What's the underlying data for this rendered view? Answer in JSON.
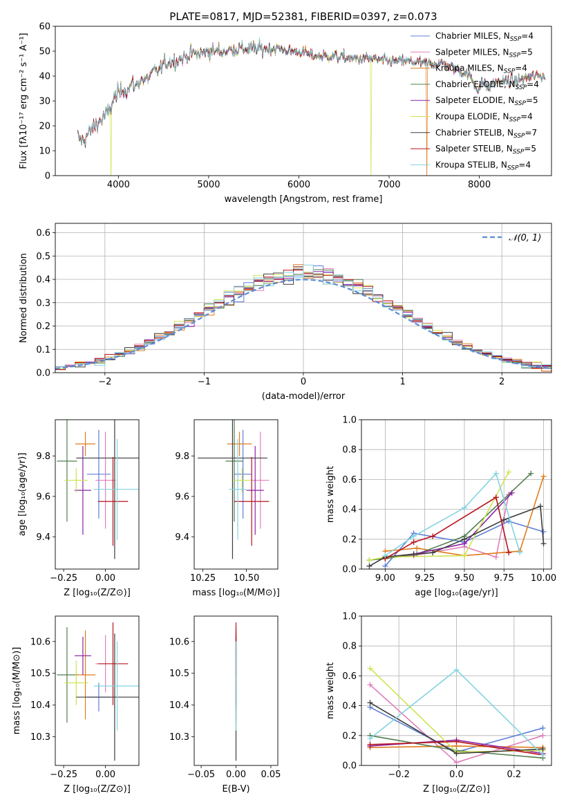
{
  "title": "PLATE=0817, MJD=52381, FIBERID=0397, z=0.073",
  "colors": {
    "Chabrier MILES": "#5b7fd6",
    "Salpeter MILES": "#e07fb8",
    "Kroupa MILES": "#e07b1c",
    "Chabrier ELODIE": "#4f7d4f",
    "Salpeter ELODIE": "#8a22a6",
    "Kroupa ELODIE": "#cfe34f",
    "Chabrier STELIB": "#3c3c3c",
    "Salpeter STELIB": "#b8121a",
    "Kroupa STELIB": "#82d3e0"
  },
  "chart_data": [
    {
      "id": "spectrum",
      "type": "line",
      "xlabel": "wavelength [Angstrom, rest frame]",
      "ylabel": "Flux [fλ10⁻¹⁷ erg cm⁻² s⁻¹ A⁻¹]",
      "xlim": [
        3300,
        8800
      ],
      "ylim": [
        0,
        60
      ],
      "xticks": [
        4000,
        5000,
        6000,
        7000,
        8000
      ],
      "yticks": [
        0,
        10,
        20,
        30,
        40,
        50,
        60
      ],
      "legend_position": "top-right",
      "legend": [
        {
          "text": "Chabrier MILES, N",
          "sub": "SSP",
          "tail": "=4",
          "model": "Chabrier MILES"
        },
        {
          "text": "Salpeter MILES, N",
          "sub": "SSP",
          "tail": "=5",
          "model": "Salpeter MILES"
        },
        {
          "text": "Kroupa MILES, N",
          "sub": "SSP",
          "tail": "=4",
          "model": "Kroupa MILES"
        },
        {
          "text": "Chabrier ELODIE, N",
          "sub": "SSP",
          "tail": "=4",
          "model": "Chabrier ELODIE"
        },
        {
          "text": "Salpeter ELODIE, N",
          "sub": "SSP",
          "tail": "=5",
          "model": "Salpeter ELODIE"
        },
        {
          "text": "Kroupa ELODIE, N",
          "sub": "SSP",
          "tail": "=4",
          "model": "Kroupa ELODIE"
        },
        {
          "text": "Chabrier STELIB, N",
          "sub": "SSP",
          "tail": "=7",
          "model": "Chabrier STELIB"
        },
        {
          "text": "Salpeter STELIB, N",
          "sub": "SSP",
          "tail": "=5",
          "model": "Salpeter STELIB"
        },
        {
          "text": "Kroupa STELIB, N",
          "sub": "SSP",
          "tail": "=4",
          "model": "Kroupa STELIB"
        }
      ],
      "continuum_points": [
        [
          3550,
          15
        ],
        [
          3600,
          14
        ],
        [
          3650,
          16
        ],
        [
          3700,
          18
        ],
        [
          3750,
          21
        ],
        [
          3800,
          22
        ],
        [
          3850,
          24
        ],
        [
          3900,
          26
        ],
        [
          3950,
          31
        ],
        [
          4000,
          33
        ],
        [
          4050,
          35
        ],
        [
          4100,
          34
        ],
        [
          4150,
          37
        ],
        [
          4200,
          36
        ],
        [
          4250,
          39
        ],
        [
          4300,
          38
        ],
        [
          4350,
          40
        ],
        [
          4400,
          42
        ],
        [
          4450,
          42
        ],
        [
          4500,
          45
        ],
        [
          4600,
          46
        ],
        [
          4700,
          47
        ],
        [
          4800,
          49
        ],
        [
          4900,
          49
        ],
        [
          5000,
          50
        ],
        [
          5100,
          50
        ],
        [
          5200,
          50
        ],
        [
          5300,
          51
        ],
        [
          5400,
          51
        ],
        [
          5500,
          51
        ],
        [
          5600,
          51
        ],
        [
          5700,
          51
        ],
        [
          5800,
          51
        ],
        [
          5900,
          50
        ],
        [
          6000,
          50
        ],
        [
          6200,
          48
        ],
        [
          6400,
          48
        ],
        [
          6600,
          47
        ],
        [
          6800,
          47
        ],
        [
          7000,
          46
        ],
        [
          7200,
          46
        ],
        [
          7400,
          45
        ],
        [
          7600,
          45
        ],
        [
          7800,
          42
        ],
        [
          7900,
          40
        ],
        [
          7950,
          36
        ],
        [
          8000,
          35
        ],
        [
          8050,
          38
        ],
        [
          8100,
          35
        ],
        [
          8150,
          37
        ],
        [
          8200,
          38
        ],
        [
          8300,
          38
        ],
        [
          8400,
          38
        ],
        [
          8500,
          39
        ],
        [
          8600,
          40
        ],
        [
          8700,
          40
        ]
      ],
      "drops": [
        {
          "model": "Kroupa ELODIE",
          "x": 3920
        },
        {
          "model": "Kroupa ELODIE",
          "x": 6800
        },
        {
          "model": "Kroupa MILES",
          "x": 7420
        }
      ]
    },
    {
      "id": "residuals",
      "type": "histogram",
      "xlabel": "(data-model)/error",
      "ylabel": "Normed distribution",
      "xlim": [
        -2.5,
        2.5
      ],
      "ylim": [
        0,
        0.64
      ],
      "xticks": [
        -2,
        -1,
        0,
        1,
        2
      ],
      "xticklabels": [
        "−2",
        "−1",
        "0",
        "1",
        "2"
      ],
      "yticks": [
        0,
        0.1,
        0.2,
        0.3,
        0.4,
        0.5,
        0.6
      ],
      "yticklabels": [
        "0.0",
        "0.1",
        "0.2",
        "0.3",
        "0.4",
        "0.5",
        "0.6"
      ],
      "grid": true,
      "bin_width": 0.1,
      "reference": {
        "name": "𝒩(0, 1)",
        "style": "dashed",
        "color": "#5b8ad6"
      },
      "legend_position": "top-right"
    },
    {
      "id": "z-age",
      "type": "errorbar",
      "xlabel": "Z [log₁₀(Z/Z⊙)]",
      "ylabel": "age  [log₁₀(age/yr)]",
      "xlim": [
        -0.3,
        0.2
      ],
      "ylim": [
        9.24,
        9.98
      ],
      "xticks": [
        -0.25,
        0.0
      ],
      "xticklabels": [
        "−0.25",
        "0.00"
      ],
      "yticks": [
        9.4,
        9.6,
        9.8
      ],
      "yticklabels": [
        "9.4",
        "9.6",
        "9.8"
      ],
      "points": [
        {
          "model": "Chabrier MILES",
          "x": -0.04,
          "y": 9.71,
          "xerr": 0.07,
          "yerr": 0.22
        },
        {
          "model": "Salpeter MILES",
          "x": 0.0,
          "y": 9.68,
          "xerr": 0.06,
          "yerr": 0.24
        },
        {
          "model": "Kroupa MILES",
          "x": -0.12,
          "y": 9.86,
          "xerr": 0.06,
          "yerr": 0.06
        },
        {
          "model": "Chabrier ELODIE",
          "x": -0.23,
          "y": 9.775,
          "xerr": 0.06,
          "yerr": 0.3
        },
        {
          "model": "Salpeter ELODIE",
          "x": -0.135,
          "y": 9.63,
          "xerr": 0.05,
          "yerr": 0.22
        },
        {
          "model": "Kroupa ELODIE",
          "x": -0.175,
          "y": 9.68,
          "xerr": 0.07,
          "yerr": 0.06
        },
        {
          "model": "Chabrier STELIB",
          "x": 0.055,
          "y": 9.79,
          "xerr": 0.23,
          "yerr": 0.5
        },
        {
          "model": "Salpeter STELIB",
          "x": 0.045,
          "y": 9.575,
          "xerr": 0.09,
          "yerr": 0.22
        },
        {
          "model": "Kroupa STELIB",
          "x": 0.07,
          "y": 9.635,
          "xerr": 0.14,
          "yerr": 0.25
        }
      ]
    },
    {
      "id": "mass-age",
      "type": "errorbar",
      "xlabel": "mass [log₁₀(M/M⊙)]",
      "ylabel": "",
      "xlim": [
        10.2,
        10.68
      ],
      "ylim": [
        9.24,
        9.98
      ],
      "xticks": [
        10.25,
        10.5
      ],
      "xticklabels": [
        "10.25",
        "10.50"
      ],
      "yticks": [
        9.4,
        9.6,
        9.8
      ],
      "yticklabels": [
        "9.4",
        "9.6",
        "9.8"
      ],
      "points": [
        {
          "model": "Chabrier MILES",
          "x": 10.48,
          "y": 9.71,
          "xerr": 0.05,
          "yerr": 0.22
        },
        {
          "model": "Salpeter MILES",
          "x": 10.58,
          "y": 9.68,
          "xerr": 0.05,
          "yerr": 0.24
        },
        {
          "model": "Kroupa MILES",
          "x": 10.46,
          "y": 9.86,
          "xerr": 0.07,
          "yerr": 0.06
        },
        {
          "model": "Chabrier ELODIE",
          "x": 10.43,
          "y": 9.775,
          "xerr": 0.05,
          "yerr": 0.3
        },
        {
          "model": "Salpeter ELODIE",
          "x": 10.55,
          "y": 9.63,
          "xerr": 0.05,
          "yerr": 0.22
        },
        {
          "model": "Kroupa ELODIE",
          "x": 10.475,
          "y": 9.68,
          "xerr": 0.05,
          "yerr": 0.06
        },
        {
          "model": "Chabrier STELIB",
          "x": 10.42,
          "y": 9.79,
          "xerr": 0.2,
          "yerr": 0.5
        },
        {
          "model": "Salpeter STELIB",
          "x": 10.53,
          "y": 9.575,
          "xerr": 0.1,
          "yerr": 0.22
        },
        {
          "model": "Kroupa STELIB",
          "x": 10.45,
          "y": 9.635,
          "xerr": 0.05,
          "yerr": 0.25
        }
      ]
    },
    {
      "id": "weights-age",
      "type": "line",
      "xlabel": "age  [log₁₀(age/yr)]",
      "ylabel": "mass weight",
      "xlim": [
        8.85,
        10.05
      ],
      "ylim": [
        0,
        1
      ],
      "xticks": [
        9.0,
        9.25,
        9.5,
        9.75,
        10.0
      ],
      "xticklabels": [
        "9.00",
        "9.25",
        "9.50",
        "9.75",
        "10.00"
      ],
      "yticks": [
        0,
        0.2,
        0.4,
        0.6,
        0.8,
        1.0
      ],
      "yticklabels": [
        "0.0",
        "0.2",
        "0.4",
        "0.6",
        "0.8",
        "1.0"
      ],
      "grid": true,
      "series": [
        {
          "model": "Chabrier MILES",
          "x": [
            9.0,
            9.18,
            9.5,
            9.78,
            10.0
          ],
          "y": [
            0.02,
            0.24,
            0.18,
            0.32,
            0.25
          ]
        },
        {
          "model": "Salpeter MILES",
          "x": [
            9.0,
            9.18,
            9.5,
            9.7,
            9.78
          ],
          "y": [
            0.08,
            0.09,
            0.15,
            0.08,
            0.5
          ]
        },
        {
          "model": "Kroupa MILES",
          "x": [
            9.0,
            9.2,
            9.5,
            9.85,
            10.0
          ],
          "y": [
            0.12,
            0.14,
            0.09,
            0.12,
            0.62
          ]
        },
        {
          "model": "Chabrier ELODIE",
          "x": [
            8.9,
            9.0,
            9.2,
            9.5,
            9.92
          ],
          "y": [
            0.06,
            0.07,
            0.1,
            0.22,
            0.64
          ]
        },
        {
          "model": "Salpeter ELODIE",
          "x": [
            9.0,
            9.18,
            9.5,
            9.8
          ],
          "y": [
            0.08,
            0.1,
            0.17,
            0.51
          ]
        },
        {
          "model": "Kroupa ELODIE",
          "x": [
            8.9,
            9.0,
            9.5,
            9.78
          ],
          "y": [
            0.06,
            0.08,
            0.09,
            0.65
          ]
        },
        {
          "model": "Chabrier STELIB",
          "x": [
            8.9,
            9.0,
            9.18,
            9.3,
            9.5,
            9.75,
            9.98,
            10.0
          ],
          "y": [
            0.02,
            0.08,
            0.1,
            0.11,
            0.2,
            0.33,
            0.42,
            0.17
          ]
        },
        {
          "model": "Salpeter STELIB",
          "x": [
            9.0,
            9.18,
            9.3,
            9.7,
            9.78
          ],
          "y": [
            0.07,
            0.18,
            0.22,
            0.48,
            0.11
          ]
        },
        {
          "model": "Kroupa STELIB",
          "x": [
            9.0,
            9.18,
            9.5,
            9.7,
            9.85
          ],
          "y": [
            0.09,
            0.22,
            0.41,
            0.64,
            0.11
          ]
        }
      ]
    },
    {
      "id": "z-mass",
      "type": "errorbar",
      "xlabel": "Z [log₁₀(Z/Z⊙)]",
      "ylabel": "mass [log₁₀(M/M⊙)]",
      "xlim": [
        -0.3,
        0.2
      ],
      "ylim": [
        10.21,
        10.68
      ],
      "xticks": [
        -0.25,
        0.0
      ],
      "xticklabels": [
        "−0.25",
        "0.00"
      ],
      "yticks": [
        10.3,
        10.4,
        10.5,
        10.6
      ],
      "yticklabels": [
        "10.3",
        "10.4",
        "10.5",
        "10.6"
      ],
      "points": [
        {
          "model": "Chabrier MILES",
          "x": -0.04,
          "y": 10.425,
          "xerr": 0.07,
          "yerr": 0.045
        },
        {
          "model": "Salpeter MILES",
          "x": 0.0,
          "y": 10.53,
          "xerr": 0.06,
          "yerr": 0.09
        },
        {
          "model": "Kroupa MILES",
          "x": -0.12,
          "y": 10.495,
          "xerr": 0.06,
          "yerr": 0.14
        },
        {
          "model": "Chabrier ELODIE",
          "x": -0.23,
          "y": 10.495,
          "xerr": 0.06,
          "yerr": 0.15
        },
        {
          "model": "Salpeter ELODIE",
          "x": -0.135,
          "y": 10.555,
          "xerr": 0.05,
          "yerr": 0.06
        },
        {
          "model": "Kroupa ELODIE",
          "x": -0.175,
          "y": 10.47,
          "xerr": 0.07,
          "yerr": 0.07
        },
        {
          "model": "Chabrier STELIB",
          "x": 0.055,
          "y": 10.425,
          "xerr": 0.23,
          "yerr": 0.2
        },
        {
          "model": "Salpeter STELIB",
          "x": 0.045,
          "y": 10.53,
          "xerr": 0.09,
          "yerr": 0.13
        },
        {
          "model": "Kroupa STELIB",
          "x": 0.07,
          "y": 10.46,
          "xerr": 0.14,
          "yerr": 0.14
        }
      ]
    },
    {
      "id": "ebv-mass",
      "type": "errorbar",
      "xlabel": "E(B-V)",
      "ylabel": "",
      "xlim": [
        -0.06,
        0.06
      ],
      "ylim": [
        10.21,
        10.68
      ],
      "xticks": [
        -0.05,
        0.0,
        0.05
      ],
      "xticklabels": [
        "−0.05",
        "0.00",
        "0.05"
      ],
      "yticks": [
        10.3,
        10.4,
        10.5,
        10.6
      ],
      "yticklabels": [
        "10.3",
        "10.4",
        "10.5",
        "10.6"
      ],
      "points": [
        {
          "model": "Chabrier MILES",
          "x": 0.0,
          "y": 10.425,
          "xerr": 0,
          "yerr": 0.045
        },
        {
          "model": "Salpeter MILES",
          "x": 0.0,
          "y": 10.53,
          "xerr": 0,
          "yerr": 0.09
        },
        {
          "model": "Kroupa MILES",
          "x": 0.0,
          "y": 10.495,
          "xerr": 0,
          "yerr": 0.14
        },
        {
          "model": "Chabrier ELODIE",
          "x": 0.0,
          "y": 10.495,
          "xerr": 0,
          "yerr": 0.15
        },
        {
          "model": "Salpeter ELODIE",
          "x": 0.0,
          "y": 10.555,
          "xerr": 0,
          "yerr": 0.06
        },
        {
          "model": "Kroupa ELODIE",
          "x": 0.0,
          "y": 10.47,
          "xerr": 0,
          "yerr": 0.07
        },
        {
          "model": "Chabrier STELIB",
          "x": 0.0,
          "y": 10.425,
          "xerr": 0,
          "yerr": 0.2
        },
        {
          "model": "Salpeter STELIB",
          "x": 0.0,
          "y": 10.53,
          "xerr": 0,
          "yerr": 0.13
        },
        {
          "model": "Kroupa STELIB",
          "x": 0.0,
          "y": 10.46,
          "xerr": 0,
          "yerr": 0.14
        }
      ]
    },
    {
      "id": "weights-z",
      "type": "line",
      "xlabel": "Z [log₁₀(Z/Z⊙)]",
      "ylabel": "mass weight",
      "xlim": [
        -0.33,
        0.33
      ],
      "ylim": [
        0,
        1
      ],
      "xticks": [
        -0.2,
        0.0,
        0.2
      ],
      "xticklabels": [
        "−0.2",
        "0.0",
        "0.2"
      ],
      "yticks": [
        0,
        0.2,
        0.4,
        0.6,
        0.8,
        1.0
      ],
      "yticklabels": [
        "0.0",
        "0.2",
        "0.4",
        "0.6",
        "0.8",
        "1.0"
      ],
      "grid": true,
      "series": [
        {
          "model": "Chabrier MILES",
          "x": [
            -0.3,
            0.0,
            0.3
          ],
          "y": [
            0.39,
            0.09,
            0.25
          ]
        },
        {
          "model": "Salpeter MILES",
          "x": [
            -0.3,
            0.0,
            0.3
          ],
          "y": [
            0.54,
            0.02,
            0.2
          ]
        },
        {
          "model": "Kroupa MILES",
          "x": [
            -0.3,
            0.0,
            0.3
          ],
          "y": [
            0.12,
            0.13,
            0.12
          ]
        },
        {
          "model": "Chabrier ELODIE",
          "x": [
            -0.3,
            0.0,
            0.3
          ],
          "y": [
            0.2,
            0.1,
            0.05
          ]
        },
        {
          "model": "Salpeter ELODIE",
          "x": [
            -0.3,
            0.0,
            0.3
          ],
          "y": [
            0.13,
            0.17,
            0.08
          ]
        },
        {
          "model": "Kroupa ELODIE",
          "x": [
            -0.3,
            0.0,
            0.3
          ],
          "y": [
            0.65,
            0.09,
            0.1
          ]
        },
        {
          "model": "Chabrier STELIB",
          "x": [
            -0.3,
            0.0,
            0.3
          ],
          "y": [
            0.42,
            0.08,
            0.11
          ]
        },
        {
          "model": "Salpeter STELIB",
          "x": [
            -0.3,
            0.0,
            0.3
          ],
          "y": [
            0.14,
            0.16,
            0.07
          ]
        },
        {
          "model": "Kroupa STELIB",
          "x": [
            -0.3,
            0.0,
            0.3
          ],
          "y": [
            0.18,
            0.64,
            0.07
          ]
        }
      ]
    }
  ]
}
